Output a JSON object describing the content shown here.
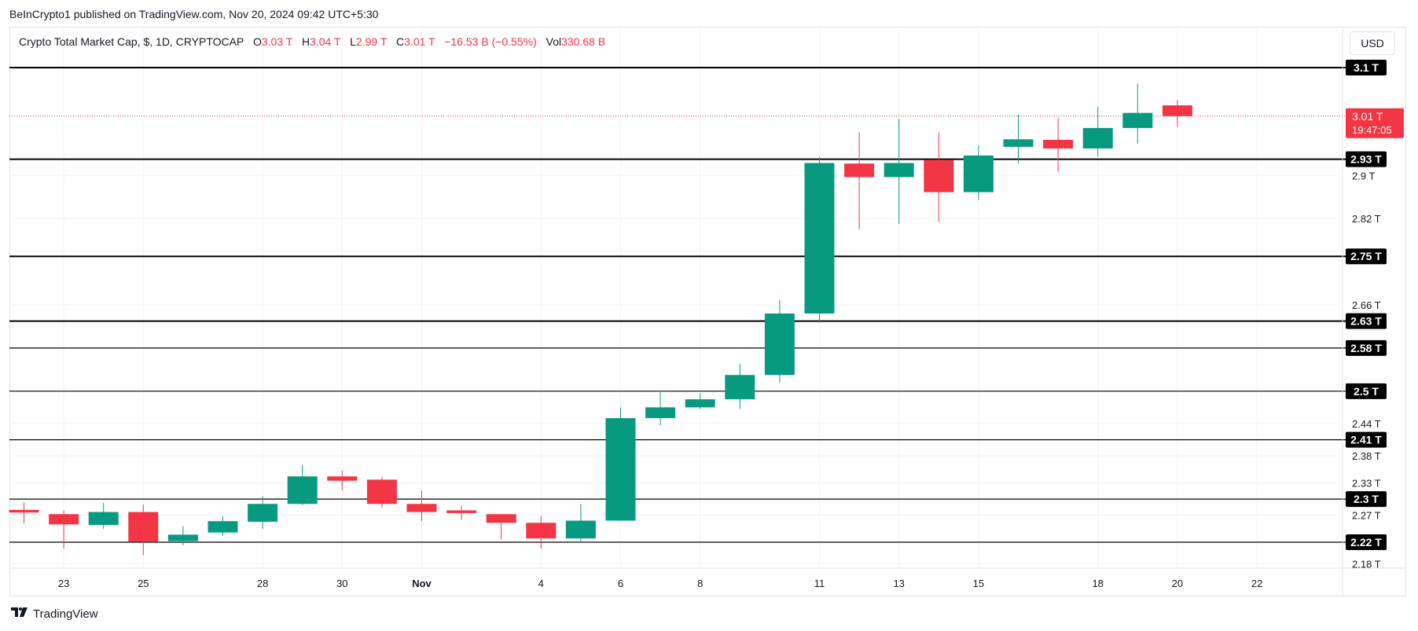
{
  "header": {
    "published": "BeInCrypto1 published on TradingView.com, Nov 20, 2024 09:42 UTC+5:30"
  },
  "legend": {
    "symbol": "Crypto Total Market Cap, $, 1D, CRYPTOCAP",
    "open_label": "O",
    "open": "3.03 T",
    "high_label": "H",
    "high": "3.04 T",
    "low_label": "L",
    "low": "2.99 T",
    "close_label": "C",
    "close": "3.01 T",
    "change": "−16.53 B (−0.55%)",
    "vol_label": "Vol",
    "vol": "330.68 B"
  },
  "currency_button": "USD",
  "footer": {
    "brand": "TradingView",
    "logo_icon": "tradingview-logo-icon"
  },
  "colors": {
    "up": "#089981",
    "down": "#f23645",
    "level_line": "#000000",
    "grid": "#f0f3fa"
  },
  "chart_data": {
    "type": "candlestick",
    "x_tick_labels": [
      "23",
      "25",
      "28",
      "30",
      "Nov",
      "4",
      "6",
      "8",
      "11",
      "13",
      "15",
      "18",
      "20",
      "22"
    ],
    "y_tick_labels": [
      "2.9 T",
      "2.82 T",
      "2.66 T",
      "2.44 T",
      "2.38 T",
      "2.33 T",
      "2.27 T",
      "2.18 T"
    ],
    "y_ticks": [
      2.9,
      2.82,
      2.66,
      2.44,
      2.38,
      2.33,
      2.27,
      2.18
    ],
    "ylim": [
      2.17,
      3.14
    ],
    "grid": true,
    "candles": [
      {
        "date": "Oct 22",
        "o": 2.28,
        "h": 2.294,
        "l": 2.255,
        "c": 2.275
      },
      {
        "date": "Oct 23",
        "o": 2.272,
        "h": 2.279,
        "l": 2.208,
        "c": 2.253
      },
      {
        "date": "Oct 24",
        "o": 2.252,
        "h": 2.293,
        "l": 2.245,
        "c": 2.276
      },
      {
        "date": "Oct 25",
        "o": 2.276,
        "h": 2.29,
        "l": 2.196,
        "c": 2.221
      },
      {
        "date": "Oct 26",
        "o": 2.222,
        "h": 2.25,
        "l": 2.214,
        "c": 2.234
      },
      {
        "date": "Oct 27",
        "o": 2.238,
        "h": 2.268,
        "l": 2.232,
        "c": 2.259
      },
      {
        "date": "Oct 28",
        "o": 2.258,
        "h": 2.305,
        "l": 2.245,
        "c": 2.291
      },
      {
        "date": "Oct 29",
        "o": 2.291,
        "h": 2.363,
        "l": 2.289,
        "c": 2.342
      },
      {
        "date": "Oct 30",
        "o": 2.342,
        "h": 2.353,
        "l": 2.317,
        "c": 2.334
      },
      {
        "date": "Oct 31",
        "o": 2.336,
        "h": 2.341,
        "l": 2.284,
        "c": 2.291
      },
      {
        "date": "Nov 1",
        "o": 2.291,
        "h": 2.316,
        "l": 2.259,
        "c": 2.276
      },
      {
        "date": "Nov 2",
        "o": 2.279,
        "h": 2.288,
        "l": 2.261,
        "c": 2.274
      },
      {
        "date": "Nov 3",
        "o": 2.272,
        "h": 2.272,
        "l": 2.225,
        "c": 2.256
      },
      {
        "date": "Nov 4",
        "o": 2.256,
        "h": 2.269,
        "l": 2.208,
        "c": 2.227
      },
      {
        "date": "Nov 5",
        "o": 2.227,
        "h": 2.291,
        "l": 2.22,
        "c": 2.26
      },
      {
        "date": "Nov 6",
        "o": 2.26,
        "h": 2.47,
        "l": 2.26,
        "c": 2.45
      },
      {
        "date": "Nov 7",
        "o": 2.45,
        "h": 2.498,
        "l": 2.437,
        "c": 2.47
      },
      {
        "date": "Nov 8",
        "o": 2.47,
        "h": 2.496,
        "l": 2.467,
        "c": 2.485
      },
      {
        "date": "Nov 9",
        "o": 2.485,
        "h": 2.551,
        "l": 2.467,
        "c": 2.53
      },
      {
        "date": "Nov 10",
        "o": 2.53,
        "h": 2.669,
        "l": 2.516,
        "c": 2.644
      },
      {
        "date": "Nov 11",
        "o": 2.644,
        "h": 2.934,
        "l": 2.627,
        "c": 2.923
      },
      {
        "date": "Nov 12",
        "o": 2.922,
        "h": 2.98,
        "l": 2.8,
        "c": 2.897
      },
      {
        "date": "Nov 13",
        "o": 2.897,
        "h": 3.005,
        "l": 2.81,
        "c": 2.923
      },
      {
        "date": "Nov 14",
        "o": 2.929,
        "h": 2.98,
        "l": 2.814,
        "c": 2.869
      },
      {
        "date": "Nov 15",
        "o": 2.869,
        "h": 2.956,
        "l": 2.854,
        "c": 2.937
      },
      {
        "date": "Nov 16",
        "o": 2.953,
        "h": 3.013,
        "l": 2.922,
        "c": 2.967
      },
      {
        "date": "Nov 17",
        "o": 2.966,
        "h": 3.006,
        "l": 2.906,
        "c": 2.95
      },
      {
        "date": "Nov 18",
        "o": 2.95,
        "h": 3.027,
        "l": 2.935,
        "c": 2.988
      },
      {
        "date": "Nov 19",
        "o": 2.988,
        "h": 3.07,
        "l": 2.959,
        "c": 3.016
      },
      {
        "date": "Nov 20",
        "o": 3.03,
        "h": 3.04,
        "l": 2.99,
        "c": 3.01
      }
    ],
    "levels": [
      {
        "value": 3.1,
        "label": "3.1 T"
      },
      {
        "value": 2.93,
        "label": "2.93 T"
      },
      {
        "value": 2.75,
        "label": "2.75 T"
      },
      {
        "value": 2.63,
        "label": "2.63 T"
      },
      {
        "value": 2.58,
        "label": "2.58 T"
      },
      {
        "value": 2.5,
        "label": "2.5 T"
      },
      {
        "value": 2.41,
        "label": "2.41 T"
      },
      {
        "value": 2.3,
        "label": "2.3 T"
      },
      {
        "value": 2.22,
        "label": "2.22 T"
      }
    ],
    "last_price": {
      "value": 3.01,
      "label": "3.01 T",
      "countdown": "19:47:05"
    }
  }
}
